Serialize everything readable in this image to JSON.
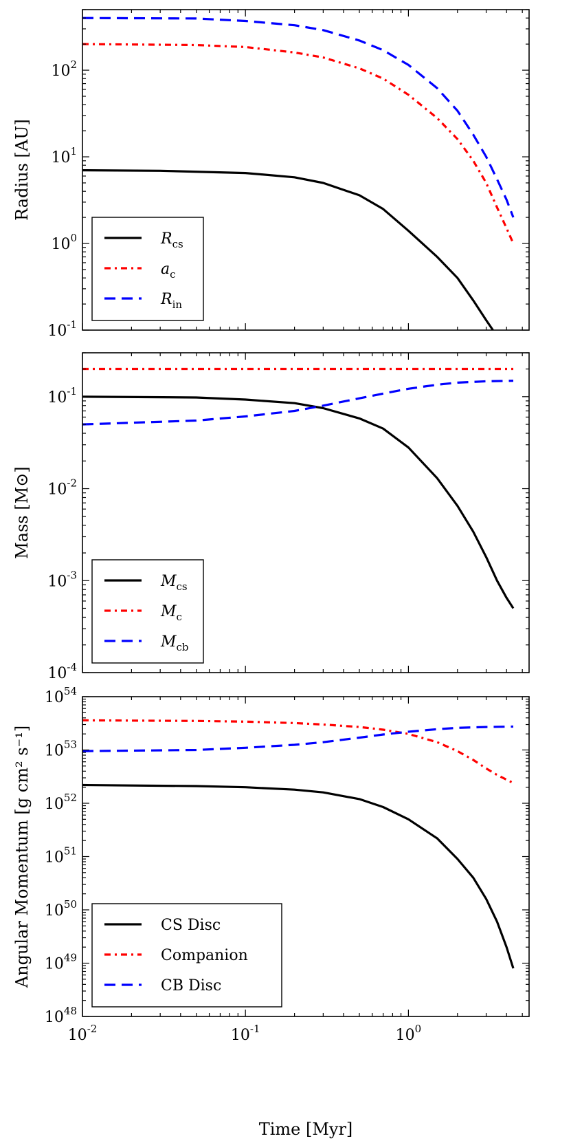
{
  "chart_data": [
    {
      "type": "line",
      "panel": "radius",
      "ylabel": "Radius [AU]",
      "xscale": "log",
      "yscale": "log",
      "xlim": [
        0.01,
        5.5
      ],
      "ylim": [
        0.1,
        500
      ],
      "yticks": [
        {
          "base": "10",
          "exp": "-1",
          "value": 0.1
        },
        {
          "base": "10",
          "exp": "0",
          "value": 1
        },
        {
          "base": "10",
          "exp": "1",
          "value": 10
        },
        {
          "base": "10",
          "exp": "2",
          "value": 100
        }
      ],
      "legend_position": "lower-left",
      "series": [
        {
          "name": "R",
          "sub": "cs",
          "color": "#000000",
          "style": "solid",
          "points": [
            [
              0.01,
              7.0
            ],
            [
              0.03,
              6.9
            ],
            [
              0.1,
              6.5
            ],
            [
              0.2,
              5.8
            ],
            [
              0.3,
              5.0
            ],
            [
              0.5,
              3.6
            ],
            [
              0.7,
              2.5
            ],
            [
              1.0,
              1.4
            ],
            [
              1.5,
              0.7
            ],
            [
              2.0,
              0.4
            ],
            [
              2.5,
              0.22
            ],
            [
              3.0,
              0.13
            ],
            [
              3.3,
              0.1
            ]
          ]
        },
        {
          "name": "a",
          "sub": "c",
          "color": "#ff0000",
          "style": "dashdot",
          "points": [
            [
              0.01,
              200
            ],
            [
              0.05,
              195
            ],
            [
              0.1,
              185
            ],
            [
              0.2,
              160
            ],
            [
              0.3,
              140
            ],
            [
              0.5,
              105
            ],
            [
              0.7,
              80
            ],
            [
              1.0,
              52
            ],
            [
              1.5,
              28
            ],
            [
              2.0,
              16
            ],
            [
              2.5,
              9
            ],
            [
              3.0,
              5
            ],
            [
              3.5,
              2.6
            ],
            [
              4.0,
              1.5
            ],
            [
              4.4,
              1.0
            ]
          ]
        },
        {
          "name": "R",
          "sub": "in",
          "color": "#0000ff",
          "style": "dashed",
          "points": [
            [
              0.01,
              400
            ],
            [
              0.05,
              395
            ],
            [
              0.1,
              370
            ],
            [
              0.2,
              330
            ],
            [
              0.3,
              290
            ],
            [
              0.5,
              220
            ],
            [
              0.7,
              170
            ],
            [
              1.0,
              115
            ],
            [
              1.5,
              62
            ],
            [
              2.0,
              34
            ],
            [
              2.5,
              18
            ],
            [
              3.0,
              10
            ],
            [
              3.5,
              5.5
            ],
            [
              4.0,
              3.2
            ],
            [
              4.4,
              2.0
            ]
          ]
        }
      ]
    },
    {
      "type": "line",
      "panel": "mass",
      "ylabel": "Mass [M⊙]",
      "xscale": "log",
      "yscale": "log",
      "xlim": [
        0.01,
        5.5
      ],
      "ylim": [
        0.0001,
        0.3
      ],
      "yticks": [
        {
          "base": "10",
          "exp": "-4",
          "value": 0.0001
        },
        {
          "base": "10",
          "exp": "-3",
          "value": 0.001
        },
        {
          "base": "10",
          "exp": "-2",
          "value": 0.01
        },
        {
          "base": "10",
          "exp": "-1",
          "value": 0.1
        }
      ],
      "legend_position": "lower-left",
      "series": [
        {
          "name": "M",
          "sub": "cs",
          "color": "#000000",
          "style": "solid",
          "points": [
            [
              0.01,
              0.1
            ],
            [
              0.05,
              0.098
            ],
            [
              0.1,
              0.093
            ],
            [
              0.2,
              0.085
            ],
            [
              0.3,
              0.075
            ],
            [
              0.5,
              0.058
            ],
            [
              0.7,
              0.045
            ],
            [
              1.0,
              0.028
            ],
            [
              1.5,
              0.013
            ],
            [
              2.0,
              0.0065
            ],
            [
              2.5,
              0.0034
            ],
            [
              3.0,
              0.0018
            ],
            [
              3.5,
              0.001
            ],
            [
              4.0,
              0.00065
            ],
            [
              4.4,
              0.0005
            ]
          ]
        },
        {
          "name": "M",
          "sub": "c",
          "color": "#ff0000",
          "style": "dashdot",
          "points": [
            [
              0.01,
              0.2
            ],
            [
              4.4,
              0.2
            ]
          ]
        },
        {
          "name": "M",
          "sub": "cb",
          "color": "#0000ff",
          "style": "dashed",
          "points": [
            [
              0.01,
              0.05
            ],
            [
              0.05,
              0.055
            ],
            [
              0.1,
              0.061
            ],
            [
              0.2,
              0.07
            ],
            [
              0.3,
              0.08
            ],
            [
              0.5,
              0.096
            ],
            [
              0.7,
              0.108
            ],
            [
              1.0,
              0.122
            ],
            [
              1.5,
              0.135
            ],
            [
              2.0,
              0.142
            ],
            [
              3.0,
              0.147
            ],
            [
              4.4,
              0.149
            ]
          ]
        }
      ]
    },
    {
      "type": "line",
      "panel": "angular-momentum",
      "ylabel": "Angular Momentum [g cm² s⁻¹]",
      "xlabel": "Time [Myr]",
      "xscale": "log",
      "yscale": "log",
      "xlim": [
        0.01,
        5.5
      ],
      "ylim": [
        1e+48,
        1e+54
      ],
      "xticks": [
        {
          "base": "10",
          "exp": "-2",
          "value": 0.01
        },
        {
          "base": "10",
          "exp": "-1",
          "value": 0.1
        },
        {
          "base": "10",
          "exp": "0",
          "value": 1
        }
      ],
      "yticks": [
        {
          "base": "10",
          "exp": "48",
          "value": 1e+48
        },
        {
          "base": "10",
          "exp": "49",
          "value": 1e+49
        },
        {
          "base": "10",
          "exp": "50",
          "value": 1e+50
        },
        {
          "base": "10",
          "exp": "51",
          "value": 1e+51
        },
        {
          "base": "10",
          "exp": "52",
          "value": 1e+52
        },
        {
          "base": "10",
          "exp": "53",
          "value": 1e+53
        },
        {
          "base": "10",
          "exp": "54",
          "value": 1e+54
        }
      ],
      "legend_position": "lower-left",
      "series": [
        {
          "name": "CS Disc",
          "color": "#000000",
          "style": "solid",
          "points": [
            [
              0.01,
              2.2e+52
            ],
            [
              0.05,
              2.1e+52
            ],
            [
              0.1,
              2e+52
            ],
            [
              0.2,
              1.8e+52
            ],
            [
              0.3,
              1.6e+52
            ],
            [
              0.5,
              1.2e+52
            ],
            [
              0.7,
              8.5e+51
            ],
            [
              1.0,
              5e+51
            ],
            [
              1.5,
              2.2e+51
            ],
            [
              2.0,
              9e+50
            ],
            [
              2.5,
              4e+50
            ],
            [
              3.0,
              1.6e+50
            ],
            [
              3.5,
              6e+49
            ],
            [
              4.0,
              2e+49
            ],
            [
              4.4,
              8e+48
            ]
          ]
        },
        {
          "name": "Companion",
          "color": "#ff0000",
          "style": "dashdot",
          "points": [
            [
              0.01,
              3.6e+53
            ],
            [
              0.05,
              3.5e+53
            ],
            [
              0.1,
              3.4e+53
            ],
            [
              0.2,
              3.2e+53
            ],
            [
              0.3,
              3e+53
            ],
            [
              0.5,
              2.7e+53
            ],
            [
              0.7,
              2.4e+53
            ],
            [
              1.0,
              2e+53
            ],
            [
              1.5,
              1.4e+53
            ],
            [
              2.0,
              9.5e+52
            ],
            [
              2.5,
              6.5e+52
            ],
            [
              3.0,
              4.5e+52
            ],
            [
              3.5,
              3.4e+52
            ],
            [
              4.4,
              2.4e+52
            ]
          ]
        },
        {
          "name": "CB Disc",
          "color": "#0000ff",
          "style": "dashed",
          "points": [
            [
              0.01,
              9.5e+52
            ],
            [
              0.05,
              1e+53
            ],
            [
              0.1,
              1.1e+53
            ],
            [
              0.2,
              1.25e+53
            ],
            [
              0.3,
              1.4e+53
            ],
            [
              0.5,
              1.7e+53
            ],
            [
              0.7,
              1.95e+53
            ],
            [
              1.0,
              2.2e+53
            ],
            [
              1.5,
              2.45e+53
            ],
            [
              2.0,
              2.6e+53
            ],
            [
              3.0,
              2.7e+53
            ],
            [
              4.4,
              2.75e+53
            ]
          ]
        }
      ]
    }
  ]
}
